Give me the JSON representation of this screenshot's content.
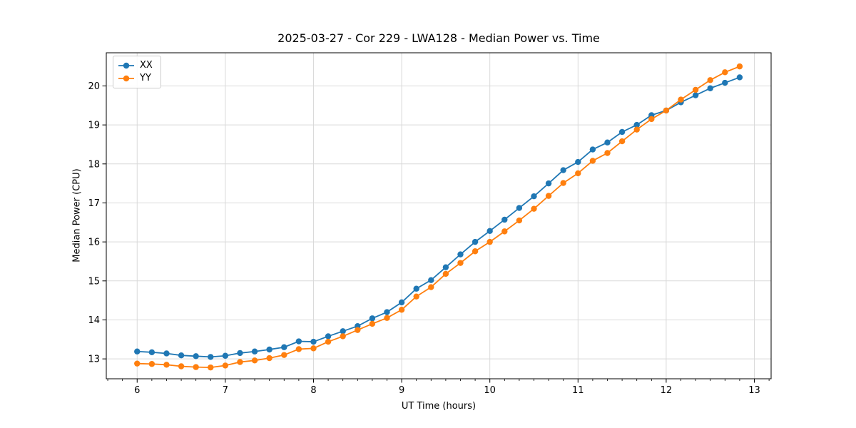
{
  "chart_data": {
    "type": "line",
    "title": "2025-03-27 - Cor 229 - LWA128 - Median Power vs. Time",
    "xlabel": "UT Time (hours)",
    "ylabel": "Median Power (CPU)",
    "grid": true,
    "legend_position": "upper-left",
    "xlim": [
      5.65,
      13.19
    ],
    "ylim": [
      12.49,
      20.85
    ],
    "x_ticks": [
      6,
      7,
      8,
      9,
      10,
      11,
      12,
      13
    ],
    "y_ticks": [
      13,
      14,
      15,
      16,
      17,
      18,
      19,
      20
    ],
    "x_minor_step": 0.166667,
    "x": [
      6.0,
      6.1667,
      6.3333,
      6.5,
      6.6667,
      6.8333,
      7.0,
      7.1667,
      7.3333,
      7.5,
      7.6667,
      7.8333,
      8.0,
      8.1667,
      8.3333,
      8.5,
      8.6667,
      8.8333,
      9.0,
      9.1667,
      9.3333,
      9.5,
      9.6667,
      9.8333,
      10.0,
      10.1667,
      10.3333,
      10.5,
      10.6667,
      10.8333,
      11.0,
      11.1667,
      11.3333,
      11.5,
      11.6667,
      11.8333,
      12.0,
      12.1667,
      12.3333,
      12.5,
      12.6667,
      12.8333
    ],
    "series": [
      {
        "name": "XX",
        "color": "#1f77b4",
        "values": [
          13.19,
          13.17,
          13.14,
          13.09,
          13.07,
          13.05,
          13.08,
          13.15,
          13.19,
          13.24,
          13.3,
          13.45,
          13.44,
          13.58,
          13.71,
          13.84,
          14.04,
          14.2,
          14.45,
          14.8,
          15.02,
          15.35,
          15.68,
          16.0,
          16.28,
          16.57,
          16.87,
          17.17,
          17.5,
          17.84,
          18.05,
          18.37,
          18.55,
          18.82,
          19.0,
          19.25,
          19.37,
          19.58,
          19.76,
          19.94,
          20.08,
          20.22
        ]
      },
      {
        "name": "YY",
        "color": "#ff7f0e",
        "values": [
          12.88,
          12.87,
          12.85,
          12.81,
          12.79,
          12.78,
          12.83,
          12.92,
          12.96,
          13.02,
          13.1,
          13.25,
          13.27,
          13.44,
          13.58,
          13.74,
          13.9,
          14.05,
          14.26,
          14.6,
          14.84,
          15.18,
          15.46,
          15.76,
          16.0,
          16.27,
          16.55,
          16.85,
          17.18,
          17.51,
          17.76,
          18.08,
          18.28,
          18.58,
          18.88,
          19.15,
          19.37,
          19.65,
          19.9,
          20.15,
          20.35,
          20.5
        ]
      }
    ]
  }
}
